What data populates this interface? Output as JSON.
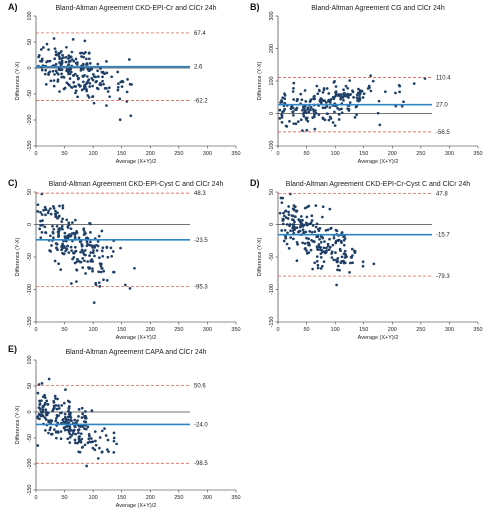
{
  "colors": {
    "points": "#1f3f66",
    "bias_line": "#2f86c6",
    "loa_line": "#d9453a",
    "zero_line": "#444444",
    "axis": "#222222"
  },
  "chart_data": [
    {
      "panel_label": "A)",
      "type": "scatter",
      "title": "Bland-Altman Agreement CKD-EPI-Cr and ClCr 24h",
      "xlabel": "Average (X+Y)/2",
      "ylabel": "Difference (Y-X)",
      "xlim": [
        0,
        350
      ],
      "ylim": [
        -150,
        100
      ],
      "xticks": [
        0,
        50,
        100,
        150,
        200,
        250,
        300,
        350
      ],
      "yticks": [
        -150,
        -100,
        -50,
        0,
        50,
        100
      ],
      "mean_difference": 2.6,
      "upper_loa": 67.4,
      "lower_loa": -62.2,
      "annotations": [
        "67.4",
        "2.6",
        "-62.2"
      ],
      "zero_line": true,
      "n_points": 230,
      "x_center": 70,
      "x_spread": 45,
      "x_max": 215,
      "y_intercept": 18,
      "y_slope": -0.35,
      "y_sd": 24
    },
    {
      "panel_label": "B)",
      "type": "scatter",
      "title": "Bland-Altman Agreement CG and ClCr 24h",
      "xlabel": "Average (X+Y)/2",
      "ylabel": "Difference (Y-X)",
      "xlim": [
        0,
        350
      ],
      "ylim": [
        -100,
        300
      ],
      "xticks": [
        0,
        50,
        100,
        150,
        200,
        250,
        300,
        350
      ],
      "yticks": [
        -100,
        0,
        100,
        200,
        300
      ],
      "mean_difference": 27.0,
      "upper_loa": 110.4,
      "lower_loa": -56.5,
      "annotations": [
        "110.4",
        "27.0",
        "-56.5"
      ],
      "zero_line": true,
      "n_points": 230,
      "x_center": 80,
      "x_spread": 55,
      "x_max": 345,
      "y_intercept": 0,
      "y_slope": 0.35,
      "y_sd": 30
    },
    {
      "panel_label": "C)",
      "type": "scatter",
      "title": "Bland-Altman Agreement CKD-EPI-Cyst C and ClCr 24h",
      "xlabel": "Average (X+Y)/2",
      "ylabel": "Difference (Y-X)",
      "xlim": [
        0,
        350
      ],
      "ylim": [
        -150,
        50
      ],
      "xticks": [
        0,
        50,
        100,
        150,
        200,
        250,
        300,
        350
      ],
      "yticks": [
        -150,
        -100,
        -50,
        0,
        50
      ],
      "mean_difference": -23.5,
      "upper_loa": 48.3,
      "lower_loa": -95.3,
      "annotations": [
        "48.3",
        "-23.5",
        "-95.3"
      ],
      "zero_line": true,
      "n_points": 230,
      "x_center": 65,
      "x_spread": 40,
      "x_max": 180,
      "y_intercept": 10,
      "y_slope": -0.55,
      "y_sd": 22
    },
    {
      "panel_label": "D)",
      "type": "scatter",
      "title": "Bland-Altman Agreement CKD-EPI-Cr-Cyst C and ClCr 24h",
      "xlabel": "Average (X+Y)/2",
      "ylabel": "Difference (Y-X)",
      "xlim": [
        0,
        350
      ],
      "ylim": [
        -150,
        50
      ],
      "xticks": [
        0,
        50,
        100,
        150,
        200,
        250,
        300,
        350
      ],
      "yticks": [
        -150,
        -100,
        -50,
        0,
        50
      ],
      "mean_difference": -15.7,
      "upper_loa": 47.8,
      "lower_loa": -79.3,
      "annotations": [
        "47.8",
        "-15.7",
        "-79.3"
      ],
      "zero_line": true,
      "n_points": 230,
      "x_center": 65,
      "x_spread": 42,
      "x_max": 190,
      "y_intercept": 12,
      "y_slope": -0.45,
      "y_sd": 20
    },
    {
      "panel_label": "E)",
      "type": "scatter",
      "title": "Bland-Altman Agreement CAPA and ClCr 24h",
      "xlabel": "Average (X+Y)/2",
      "ylabel": "Difference (Y-X)",
      "xlim": [
        0,
        350
      ],
      "ylim": [
        -150,
        100
      ],
      "xticks": [
        0,
        50,
        100,
        150,
        200,
        250,
        300,
        350
      ],
      "yticks": [
        -150,
        -100,
        -50,
        0,
        50,
        100
      ],
      "mean_difference": -24.0,
      "upper_loa": 50.6,
      "lower_loa": -98.5,
      "annotations": [
        "50.6",
        "-24.0",
        "-98.5"
      ],
      "zero_line": true,
      "n_points": 230,
      "x_center": 55,
      "x_spread": 38,
      "x_max": 200,
      "y_intercept": 8,
      "y_slope": -0.55,
      "y_sd": 22
    }
  ]
}
